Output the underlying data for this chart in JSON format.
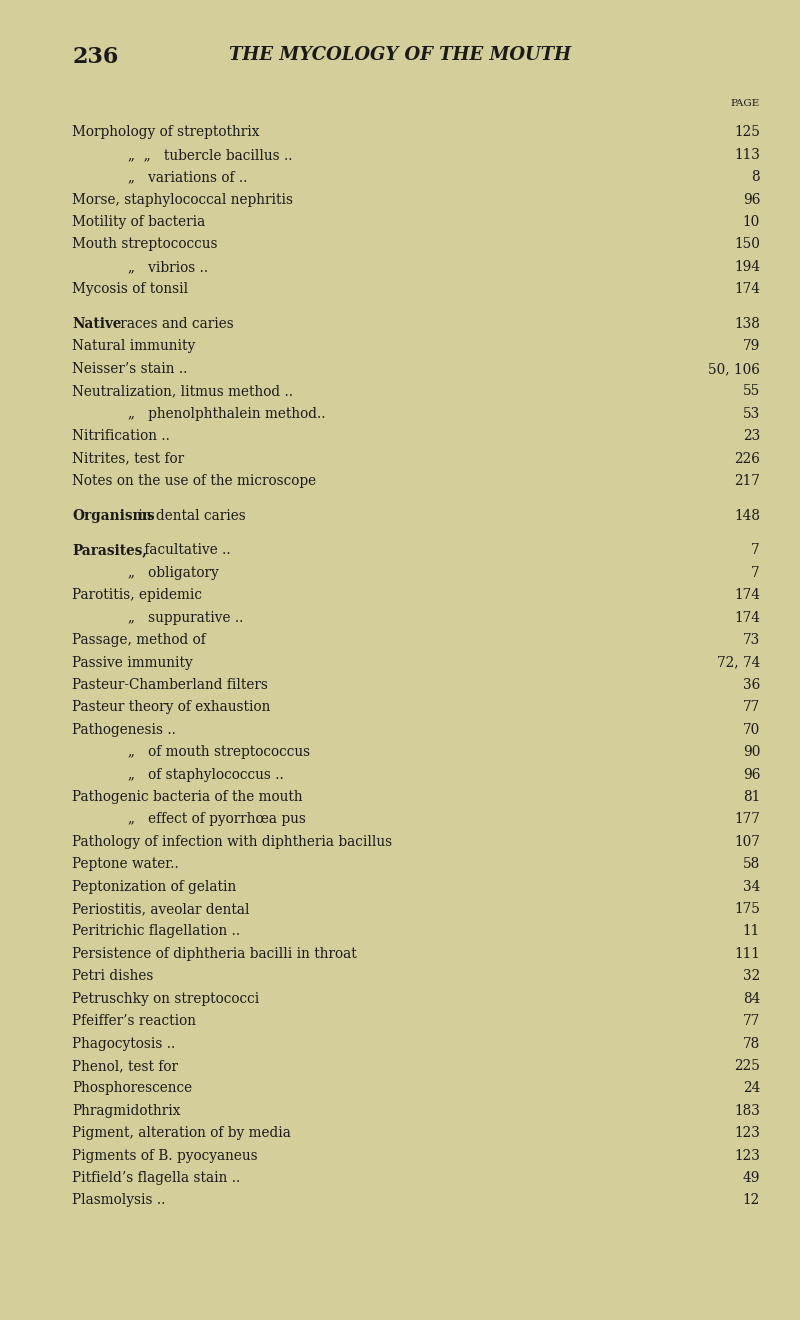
{
  "page_number": "236",
  "header": "THE MYCOLOGY OF THE MOUTH",
  "background_color": "#d4cf9a",
  "text_color": "#1a1a1a",
  "page_label": "PAGE",
  "entries": [
    {
      "text": "Morphology of streptothrix",
      "indent": 0,
      "bold_prefix": "",
      "page": "125"
    },
    {
      "text": "„  „   tubercle bacillus ..",
      "indent": 1,
      "bold_prefix": "",
      "page": "113"
    },
    {
      "text": "„   variations of ..",
      "indent": 1,
      "bold_prefix": "",
      "page": "8"
    },
    {
      "text": "Morse, staphylococcal nephritis",
      "indent": 0,
      "bold_prefix": "",
      "page": "96"
    },
    {
      "text": "Motility of bacteria",
      "indent": 0,
      "bold_prefix": "",
      "page": "10"
    },
    {
      "text": "Mouth streptococcus",
      "indent": 0,
      "bold_prefix": "",
      "page": "150"
    },
    {
      "text": "„   vibrios ..",
      "indent": 1,
      "bold_prefix": "",
      "page": "194"
    },
    {
      "text": "Mycosis of tonsil",
      "indent": 0,
      "bold_prefix": "",
      "page": "174"
    },
    {
      "text": "",
      "indent": 0,
      "bold_prefix": "",
      "page": ""
    },
    {
      "text": "races and caries",
      "indent": 0,
      "bold_prefix": "Native",
      "page": "138"
    },
    {
      "text": "Natural immunity",
      "indent": 0,
      "bold_prefix": "",
      "page": "79"
    },
    {
      "text": "Neisser’s stain ..",
      "indent": 0,
      "bold_prefix": "",
      "page": "50, 106"
    },
    {
      "text": "Neutralization, litmus method ..",
      "indent": 0,
      "bold_prefix": "",
      "page": "55"
    },
    {
      "text": "„   phenolphthalein method..",
      "indent": 1,
      "bold_prefix": "",
      "page": "53"
    },
    {
      "text": "Nitrification ..",
      "indent": 0,
      "bold_prefix": "",
      "page": "23"
    },
    {
      "text": "Nitrites, test for",
      "indent": 0,
      "bold_prefix": "",
      "page": "226"
    },
    {
      "text": "Notes on the use of the microscope",
      "indent": 0,
      "bold_prefix": "",
      "page": "217"
    },
    {
      "text": "",
      "indent": 0,
      "bold_prefix": "",
      "page": ""
    },
    {
      "text": "in dental caries",
      "indent": 0,
      "bold_prefix": "Organisms",
      "page": "148"
    },
    {
      "text": "",
      "indent": 0,
      "bold_prefix": "",
      "page": ""
    },
    {
      "text": "facultative ..",
      "indent": 0,
      "bold_prefix": "Parasites,",
      "page": "7"
    },
    {
      "text": "„   obligatory",
      "indent": 1,
      "bold_prefix": "",
      "page": "7"
    },
    {
      "text": "Parotitis, epidemic",
      "indent": 0,
      "bold_prefix": "",
      "page": "174"
    },
    {
      "text": "„   suppurative ..",
      "indent": 1,
      "bold_prefix": "",
      "page": "174"
    },
    {
      "text": "Passage, method of",
      "indent": 0,
      "bold_prefix": "",
      "page": "73"
    },
    {
      "text": "Passive immunity",
      "indent": 0,
      "bold_prefix": "",
      "page": "72, 74"
    },
    {
      "text": "Pasteur-Chamberland filters",
      "indent": 0,
      "bold_prefix": "",
      "page": "36"
    },
    {
      "text": "Pasteur theory of exhaustion",
      "indent": 0,
      "bold_prefix": "",
      "page": "77"
    },
    {
      "text": "Pathogenesis ..",
      "indent": 0,
      "bold_prefix": "",
      "page": "70"
    },
    {
      "text": "„   of mouth streptococcus",
      "indent": 1,
      "bold_prefix": "",
      "page": "90"
    },
    {
      "text": "„   of staphylococcus ..",
      "indent": 1,
      "bold_prefix": "",
      "page": "96"
    },
    {
      "text": "Pathogenic bacteria of the mouth",
      "indent": 0,
      "bold_prefix": "",
      "page": "81"
    },
    {
      "text": "„   effect of pyorrhœa pus",
      "indent": 1,
      "bold_prefix": "",
      "page": "177"
    },
    {
      "text": "Pathology of infection with diphtheria bacillus",
      "indent": 0,
      "bold_prefix": "",
      "page": "107"
    },
    {
      "text": "Peptone water..",
      "indent": 0,
      "bold_prefix": "",
      "page": "58"
    },
    {
      "text": "Peptonization of gelatin",
      "indent": 0,
      "bold_prefix": "",
      "page": "34"
    },
    {
      "text": "Periostitis, aveolar dental",
      "indent": 0,
      "bold_prefix": "",
      "page": "175"
    },
    {
      "text": "Peritrichic flagellation ..",
      "indent": 0,
      "bold_prefix": "",
      "page": "11"
    },
    {
      "text": "Persistence of diphtheria bacilli in throat",
      "indent": 0,
      "bold_prefix": "",
      "page": "111"
    },
    {
      "text": "Petri dishes",
      "indent": 0,
      "bold_prefix": "",
      "page": "32"
    },
    {
      "text": "Petruschky on streptococci",
      "indent": 0,
      "bold_prefix": "",
      "page": "84"
    },
    {
      "text": "Pfeiffer’s reaction",
      "indent": 0,
      "bold_prefix": "",
      "page": "77"
    },
    {
      "text": "Phagocytosis ..",
      "indent": 0,
      "bold_prefix": "",
      "page": "78"
    },
    {
      "text": "Phenol, test for",
      "indent": 0,
      "bold_prefix": "",
      "page": "225"
    },
    {
      "text": "Phosphorescence",
      "indent": 0,
      "bold_prefix": "",
      "page": "24"
    },
    {
      "text": "Phragmidothrix",
      "indent": 0,
      "bold_prefix": "",
      "page": "183"
    },
    {
      "text": "Pigment, alteration of by media",
      "indent": 0,
      "bold_prefix": "",
      "page": "123"
    },
    {
      "text": "Pigments of B. pyocyaneus",
      "indent": 0,
      "bold_prefix": "",
      "page": "123"
    },
    {
      "text": "Pitfield’s flagella stain ..",
      "indent": 0,
      "bold_prefix": "",
      "page": "49"
    },
    {
      "text": "Plasmolysis ..",
      "indent": 0,
      "bold_prefix": "",
      "page": "12"
    }
  ]
}
